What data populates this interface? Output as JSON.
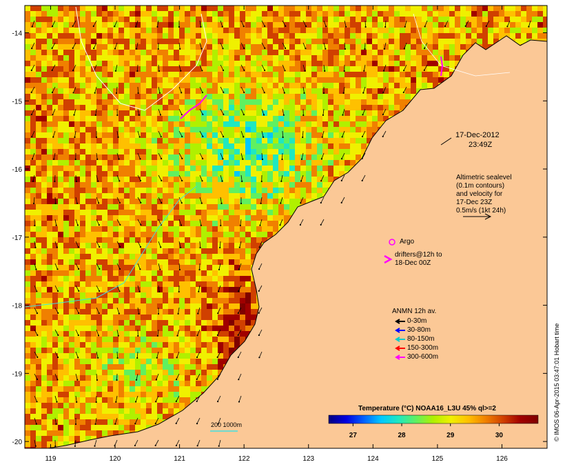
{
  "map": {
    "x_axis": {
      "min": 118.6,
      "max": 126.7,
      "ticks": [
        "119",
        "120",
        "121",
        "122",
        "123",
        "124",
        "125",
        "126"
      ]
    },
    "y_axis": {
      "min": -20.1,
      "max": -13.6,
      "ticks": [
        "-14",
        "-15",
        "-16",
        "-17",
        "-18",
        "-19",
        "-20"
      ]
    }
  },
  "annotations": {
    "date": "17-Dec-2012",
    "time": "23:49Z",
    "altimetry_lines": [
      "Altimetric sealevel",
      "(0.1m contours)",
      "and velocity for",
      "17-Dec 23Z",
      "0.5m/s (1kt 24h)"
    ],
    "argo_label": "Argo",
    "drifters_lines": [
      "drifters@12h to",
      "18-Dec 00Z"
    ],
    "anmn_title": "ANMN 12h av.",
    "anmn_depths": [
      {
        "label": "0-30m",
        "color": "#000000"
      },
      {
        "label": "30-80m",
        "color": "#0000ff"
      },
      {
        "label": "80-150m",
        "color": "#00cccc"
      },
      {
        "label": "150-300m",
        "color": "#ff0000"
      },
      {
        "label": "300-600m",
        "color": "#ff00ff"
      }
    ],
    "isobath_label": "200  1000m",
    "credit": "© IMOS 06-Apr-2015 03:47:01 Hobart time"
  },
  "colorbar": {
    "title": "Temperature (°C) NOAA16_L3U 45% ql>=2",
    "range": [
      26.5,
      30.8
    ],
    "ticks": [
      "27",
      "28",
      "29",
      "30"
    ],
    "colors": [
      "#00007f",
      "#0000e0",
      "#0060ff",
      "#00c8ff",
      "#20e8c0",
      "#60f060",
      "#b0f000",
      "#f0f000",
      "#ffc000",
      "#f08000",
      "#d04000",
      "#a00000",
      "#7f0000"
    ]
  },
  "colors": {
    "land": "#fbc896",
    "coast": "#000000"
  }
}
